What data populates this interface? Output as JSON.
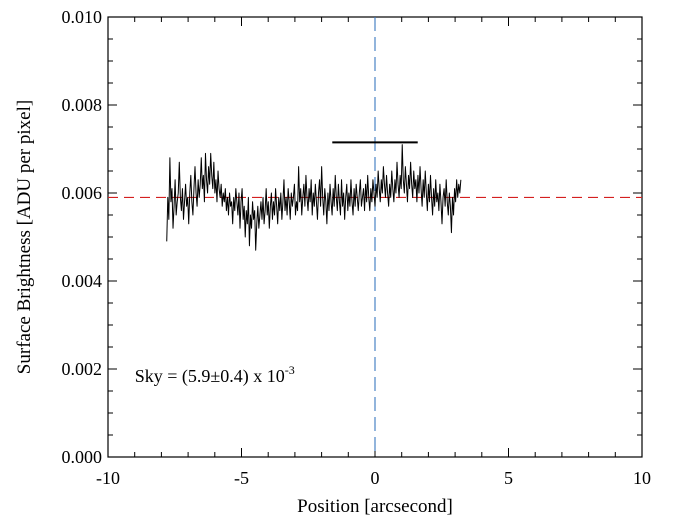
{
  "chart_data": {
    "type": "line",
    "title": "",
    "xlabel": "Position [arcsecond]",
    "ylabel": "Surface Brightness [ADU per pixel]",
    "xlim": [
      -10,
      10
    ],
    "ylim": [
      0.0,
      0.01
    ],
    "x_ticks": [
      -10,
      -5,
      0,
      5,
      10
    ],
    "x_tick_labels": [
      "-10",
      "-5",
      "0",
      "5",
      "10"
    ],
    "y_ticks": [
      0.0,
      0.002,
      0.004,
      0.006,
      0.008,
      0.01
    ],
    "y_tick_labels": [
      "0.000",
      "0.002",
      "0.004",
      "0.006",
      "0.008",
      "0.010"
    ],
    "grid": false,
    "legend": "none",
    "annotation": {
      "text_main": "Sky = (5.9±0.4) x 10",
      "text_exponent": "-3",
      "x": -9.0,
      "y": 0.0017
    },
    "reference_lines": [
      {
        "orientation": "horizontal",
        "value": 0.0059,
        "color": "#d42020",
        "style": "dashed"
      },
      {
        "orientation": "vertical",
        "value": 0.0,
        "color": "#3a78c0",
        "style": "dashed"
      }
    ],
    "horizontal_segment": {
      "x_start": -1.6,
      "x_end": 1.6,
      "y": 0.00715,
      "color": "#000000"
    },
    "series": [
      {
        "color": "#000000",
        "x_start": -7.8,
        "x_step": 0.0392,
        "values": [
          0.0049,
          0.0059,
          0.0054,
          0.0068,
          0.0058,
          0.0061,
          0.0052,
          0.0057,
          0.0063,
          0.0055,
          0.0058,
          0.006,
          0.0067,
          0.0059,
          0.0056,
          0.0061,
          0.0054,
          0.0058,
          0.0062,
          0.0057,
          0.0059,
          0.0053,
          0.006,
          0.0064,
          0.0058,
          0.0055,
          0.0061,
          0.0066,
          0.006,
          0.0057,
          0.0063,
          0.0059,
          0.0062,
          0.0068,
          0.0061,
          0.0064,
          0.0058,
          0.0069,
          0.0063,
          0.006,
          0.0066,
          0.0062,
          0.0069,
          0.0064,
          0.0061,
          0.0067,
          0.006,
          0.0063,
          0.0058,
          0.0065,
          0.0061,
          0.0059,
          0.0062,
          0.0057,
          0.006,
          0.0058,
          0.0061,
          0.0056,
          0.0059,
          0.0055,
          0.006,
          0.0057,
          0.0058,
          0.0053,
          0.0059,
          0.0056,
          0.0061,
          0.0058,
          0.0055,
          0.006,
          0.0052,
          0.0058,
          0.0061,
          0.0054,
          0.0057,
          0.005,
          0.0056,
          0.0053,
          0.0059,
          0.0048,
          0.0055,
          0.0052,
          0.0058,
          0.0054,
          0.0056,
          0.0047,
          0.0053,
          0.0057,
          0.0052,
          0.0055,
          0.0058,
          0.0054,
          0.0059,
          0.0053,
          0.0056,
          0.0061,
          0.0055,
          0.0058,
          0.0052,
          0.0057,
          0.006,
          0.0054,
          0.0058,
          0.0055,
          0.0061,
          0.0057,
          0.0053,
          0.0059,
          0.0056,
          0.006,
          0.0054,
          0.0058,
          0.0063,
          0.0056,
          0.0059,
          0.0055,
          0.0061,
          0.0058,
          0.0054,
          0.006,
          0.0057,
          0.0059,
          0.0062,
          0.0055,
          0.0058,
          0.0056,
          0.0066,
          0.0058,
          0.0061,
          0.0055,
          0.0059,
          0.0062,
          0.0057,
          0.0064,
          0.0059,
          0.0056,
          0.0061,
          0.0058,
          0.0063,
          0.0055,
          0.006,
          0.0057,
          0.0062,
          0.0058,
          0.0054,
          0.006,
          0.0063,
          0.0057,
          0.0066,
          0.0059,
          0.0055,
          0.0061,
          0.0058,
          0.0053,
          0.006,
          0.0056,
          0.0062,
          0.0058,
          0.0055,
          0.0061,
          0.0057,
          0.0064,
          0.0059,
          0.0056,
          0.0062,
          0.0058,
          0.0055,
          0.0063,
          0.0057,
          0.006,
          0.0054,
          0.0059,
          0.0062,
          0.0056,
          0.006,
          0.0057,
          0.0063,
          0.0058,
          0.0055,
          0.0061,
          0.0057,
          0.0062,
          0.0059,
          0.0056,
          0.006,
          0.0063,
          0.0057,
          0.0059,
          0.0061,
          0.0056,
          0.0062,
          0.0058,
          0.0064,
          0.0059,
          0.0056,
          0.0061,
          0.0058,
          0.0063,
          0.006,
          0.0057,
          0.0062,
          0.0059,
          0.0065,
          0.0061,
          0.0058,
          0.0063,
          0.006,
          0.0066,
          0.0062,
          0.0059,
          0.0064,
          0.006,
          0.0057,
          0.0062,
          0.0059,
          0.0065,
          0.0061,
          0.0058,
          0.0063,
          0.006,
          0.0067,
          0.0062,
          0.0059,
          0.0064,
          0.0061,
          0.0071,
          0.0063,
          0.006,
          0.0066,
          0.0062,
          0.0058,
          0.0064,
          0.0061,
          0.0067,
          0.0062,
          0.0059,
          0.0065,
          0.0061,
          0.0063,
          0.0058,
          0.0064,
          0.006,
          0.0066,
          0.0061,
          0.0057,
          0.0063,
          0.0059,
          0.0065,
          0.006,
          0.0056,
          0.0062,
          0.0058,
          0.0064,
          0.0059,
          0.0055,
          0.0061,
          0.0057,
          0.0063,
          0.0058,
          0.006,
          0.0056,
          0.0062,
          0.0058,
          0.0053,
          0.0059,
          0.0061,
          0.0057,
          0.0063,
          0.0058,
          0.0055,
          0.006,
          0.0057,
          0.0051,
          0.0059,
          0.0055,
          0.0061,
          0.0058,
          0.0063,
          0.0059,
          0.0062,
          0.006,
          0.0063
        ]
      }
    ]
  }
}
